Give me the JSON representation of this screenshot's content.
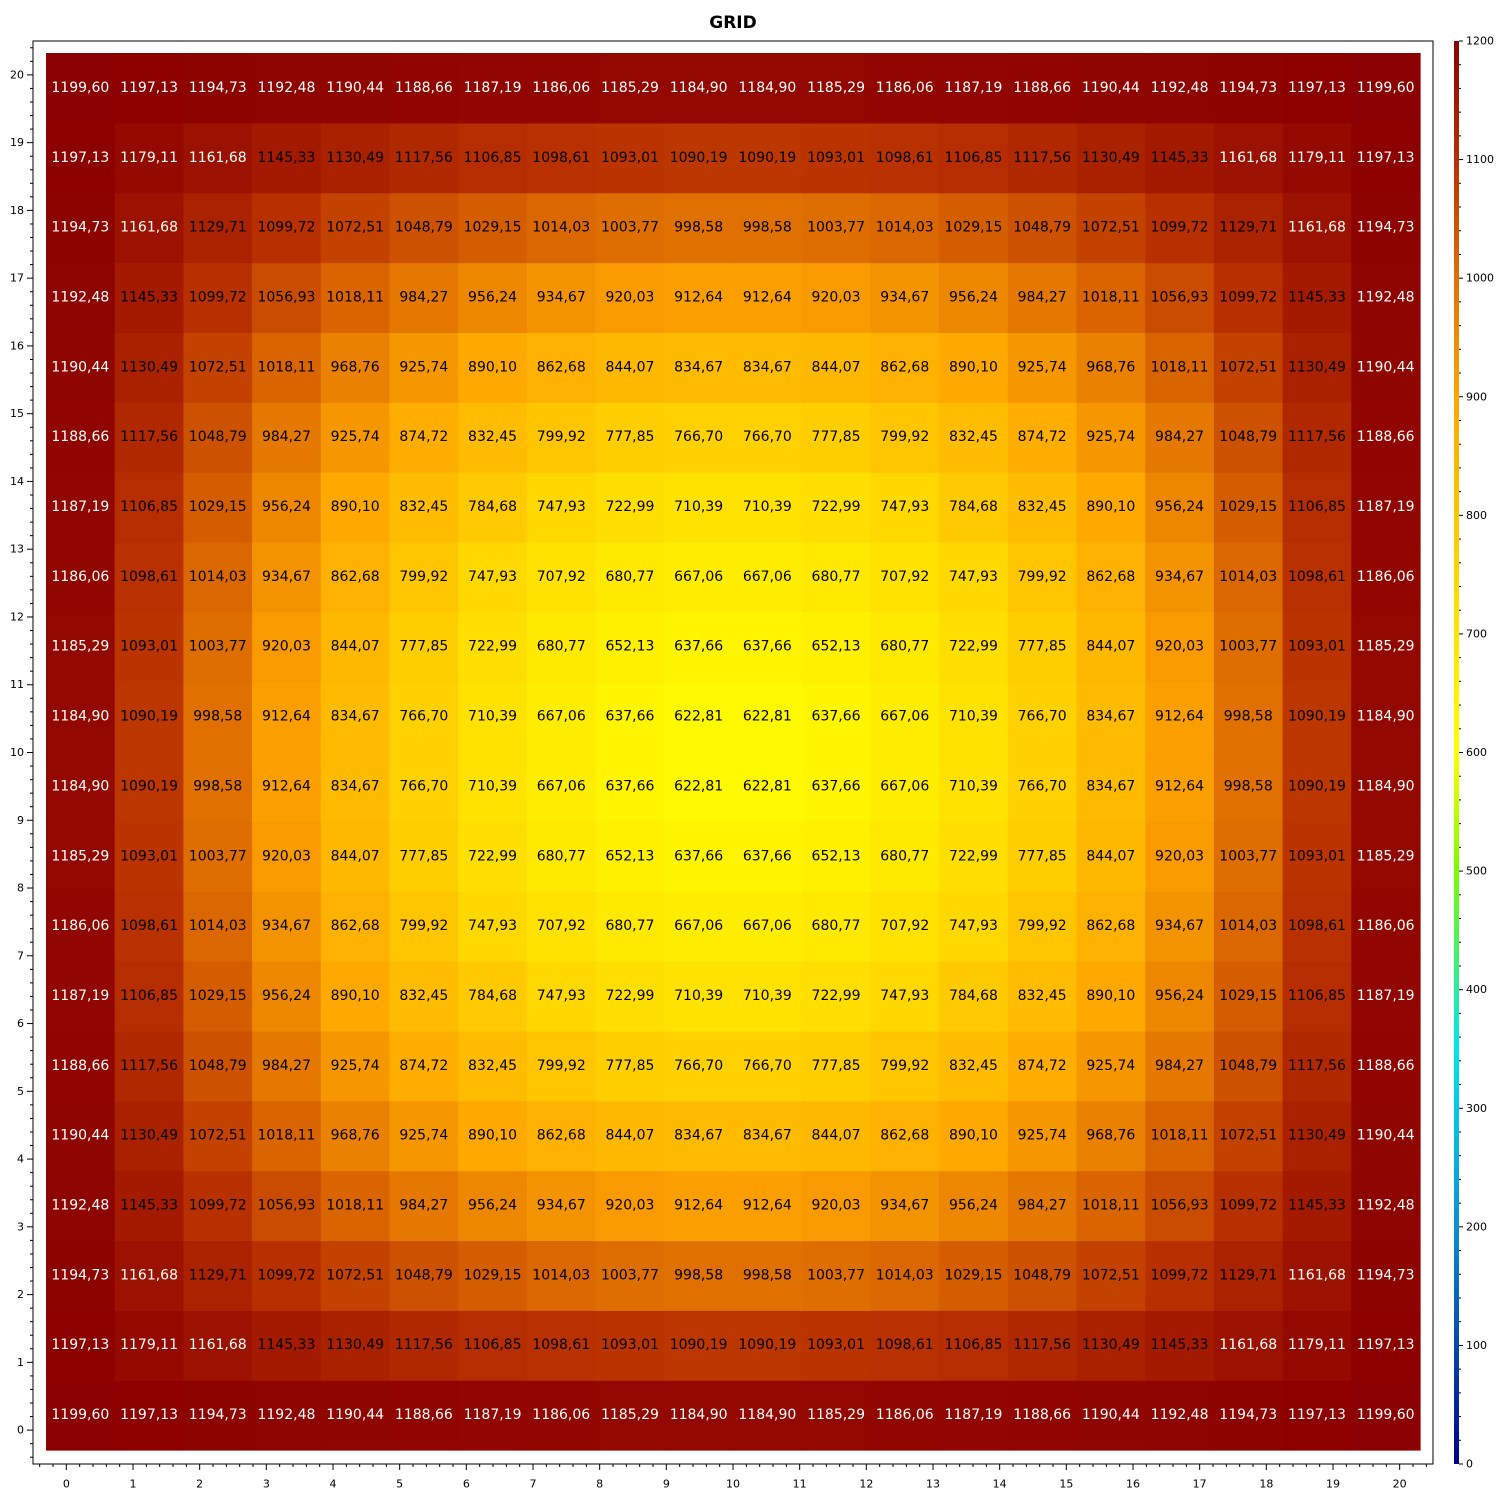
{
  "chart_data": {
    "type": "heatmap",
    "title": "GRID",
    "xlabel": "",
    "ylabel": "",
    "x": [
      0,
      1,
      2,
      3,
      4,
      5,
      6,
      7,
      8,
      9,
      10,
      11,
      12,
      13,
      14,
      15,
      16,
      17,
      18,
      19,
      20
    ],
    "y": [
      0,
      1,
      2,
      3,
      4,
      5,
      6,
      7,
      8,
      9,
      10,
      11,
      12,
      13,
      14,
      15,
      16,
      17,
      18,
      19,
      20
    ],
    "xlim": [
      -0.5,
      20.5
    ],
    "ylim": [
      -0.5,
      20.5
    ],
    "x_ticks": [
      0,
      1,
      2,
      3,
      4,
      5,
      6,
      7,
      8,
      9,
      10,
      11,
      12,
      13,
      14,
      15,
      16,
      17,
      18,
      19,
      20
    ],
    "y_ticks": [
      0,
      1,
      2,
      3,
      4,
      5,
      6,
      7,
      8,
      9,
      10,
      11,
      12,
      13,
      14,
      15,
      16,
      17,
      18,
      19,
      20
    ],
    "decimal_separator": ",",
    "rows_bottom_to_top": [
      [
        "1199,60",
        "1197,13",
        "1194,73",
        "1192,48",
        "1190,44",
        "1188,66",
        "1187,19",
        "1186,06",
        "1185,29",
        "1184,90",
        "1184,90",
        "1185,29",
        "1186,06",
        "1187,19",
        "1188,66",
        "1190,44",
        "1192,48",
        "1194,73",
        "1197,13",
        "1199,60"
      ],
      [
        "1197,13",
        "1179,11",
        "1161,68",
        "1145,33",
        "1130,49",
        "1117,56",
        "1106,85",
        "1098,61",
        "1093,01",
        "1090,19",
        "1090,19",
        "1093,01",
        "1098,61",
        "1106,85",
        "1117,56",
        "1130,49",
        "1145,33",
        "1161,68",
        "1179,11",
        "1197,13"
      ],
      [
        "1194,73",
        "1161,68",
        "1129,71",
        "1099,72",
        "1072,51",
        "1048,79",
        "1029,15",
        "1014,03",
        "1003,77",
        "998,58",
        "998,58",
        "1003,77",
        "1014,03",
        "1029,15",
        "1048,79",
        "1072,51",
        "1099,72",
        "1129,71",
        "1161,68",
        "1194,73"
      ],
      [
        "1192,48",
        "1145,33",
        "1099,72",
        "1056,93",
        "1018,11",
        "984,27",
        "956,24",
        "934,67",
        "920,03",
        "912,64",
        "912,64",
        "920,03",
        "934,67",
        "956,24",
        "984,27",
        "1018,11",
        "1056,93",
        "1099,72",
        "1145,33",
        "1192,48"
      ],
      [
        "1190,44",
        "1130,49",
        "1072,51",
        "1018,11",
        "968,76",
        "925,74",
        "890,10",
        "862,68",
        "844,07",
        "834,67",
        "834,67",
        "844,07",
        "862,68",
        "890,10",
        "925,74",
        "968,76",
        "1018,11",
        "1072,51",
        "1130,49",
        "1190,44"
      ],
      [
        "1188,66",
        "1117,56",
        "1048,79",
        "984,27",
        "925,74",
        "874,72",
        "832,45",
        "799,92",
        "777,85",
        "766,70",
        "766,70",
        "777,85",
        "799,92",
        "832,45",
        "874,72",
        "925,74",
        "984,27",
        "1048,79",
        "1117,56",
        "1188,66"
      ],
      [
        "1187,19",
        "1106,85",
        "1029,15",
        "956,24",
        "890,10",
        "832,45",
        "784,68",
        "747,93",
        "722,99",
        "710,39",
        "710,39",
        "722,99",
        "747,93",
        "784,68",
        "832,45",
        "890,10",
        "956,24",
        "1029,15",
        "1106,85",
        "1187,19"
      ],
      [
        "1186,06",
        "1098,61",
        "1014,03",
        "934,67",
        "862,68",
        "799,92",
        "747,93",
        "707,92",
        "680,77",
        "667,06",
        "667,06",
        "680,77",
        "707,92",
        "747,93",
        "799,92",
        "862,68",
        "934,67",
        "1014,03",
        "1098,61",
        "1186,06"
      ],
      [
        "1185,29",
        "1093,01",
        "1003,77",
        "920,03",
        "844,07",
        "777,85",
        "722,99",
        "680,77",
        "652,13",
        "637,66",
        "637,66",
        "652,13",
        "680,77",
        "722,99",
        "777,85",
        "844,07",
        "920,03",
        "1003,77",
        "1093,01",
        "1185,29"
      ],
      [
        "1184,90",
        "1090,19",
        "998,58",
        "912,64",
        "834,67",
        "766,70",
        "710,39",
        "667,06",
        "637,66",
        "622,81",
        "622,81",
        "637,66",
        "667,06",
        "710,39",
        "766,70",
        "834,67",
        "912,64",
        "998,58",
        "1090,19",
        "1184,90"
      ],
      [
        "1184,90",
        "1090,19",
        "998,58",
        "912,64",
        "834,67",
        "766,70",
        "710,39",
        "667,06",
        "637,66",
        "622,81",
        "622,81",
        "637,66",
        "667,06",
        "710,39",
        "766,70",
        "834,67",
        "912,64",
        "998,58",
        "1090,19",
        "1184,90"
      ],
      [
        "1185,29",
        "1093,01",
        "1003,77",
        "920,03",
        "844,07",
        "777,85",
        "722,99",
        "680,77",
        "652,13",
        "637,66",
        "637,66",
        "652,13",
        "680,77",
        "722,99",
        "777,85",
        "844,07",
        "920,03",
        "1003,77",
        "1093,01",
        "1185,29"
      ],
      [
        "1186,06",
        "1098,61",
        "1014,03",
        "934,67",
        "862,68",
        "799,92",
        "747,93",
        "707,92",
        "680,77",
        "667,06",
        "667,06",
        "680,77",
        "707,92",
        "747,93",
        "799,92",
        "862,68",
        "934,67",
        "1014,03",
        "1098,61",
        "1186,06"
      ],
      [
        "1187,19",
        "1106,85",
        "1029,15",
        "956,24",
        "890,10",
        "832,45",
        "784,68",
        "747,93",
        "722,99",
        "710,39",
        "710,39",
        "722,99",
        "747,93",
        "784,68",
        "832,45",
        "890,10",
        "956,24",
        "1029,15",
        "1106,85",
        "1187,19"
      ],
      [
        "1188,66",
        "1117,56",
        "1048,79",
        "984,27",
        "925,74",
        "874,72",
        "832,45",
        "799,92",
        "777,85",
        "766,70",
        "766,70",
        "777,85",
        "799,92",
        "832,45",
        "874,72",
        "925,74",
        "984,27",
        "1048,79",
        "1117,56",
        "1188,66"
      ],
      [
        "1190,44",
        "1130,49",
        "1072,51",
        "1018,11",
        "968,76",
        "925,74",
        "890,10",
        "862,68",
        "844,07",
        "834,67",
        "834,67",
        "844,07",
        "862,68",
        "890,10",
        "925,74",
        "968,76",
        "1018,11",
        "1072,51",
        "1130,49",
        "1190,44"
      ],
      [
        "1192,48",
        "1145,33",
        "1099,72",
        "1056,93",
        "1018,11",
        "984,27",
        "956,24",
        "934,67",
        "920,03",
        "912,64",
        "912,64",
        "920,03",
        "934,67",
        "956,24",
        "984,27",
        "1018,11",
        "1056,93",
        "1099,72",
        "1145,33",
        "1192,48"
      ],
      [
        "1194,73",
        "1161,68",
        "1129,71",
        "1099,72",
        "1072,51",
        "1048,79",
        "1029,15",
        "1014,03",
        "1003,77",
        "998,58",
        "998,58",
        "1003,77",
        "1014,03",
        "1029,15",
        "1048,79",
        "1072,51",
        "1099,72",
        "1129,71",
        "1161,68",
        "1194,73"
      ],
      [
        "1197,13",
        "1179,11",
        "1161,68",
        "1145,33",
        "1130,49",
        "1117,56",
        "1106,85",
        "1098,61",
        "1093,01",
        "1090,19",
        "1090,19",
        "1093,01",
        "1098,61",
        "1106,85",
        "1117,56",
        "1130,49",
        "1145,33",
        "1161,68",
        "1179,11",
        "1197,13"
      ],
      [
        "1199,60",
        "1197,13",
        "1194,73",
        "1192,48",
        "1190,44",
        "1188,66",
        "1187,19",
        "1186,06",
        "1185,29",
        "1184,90",
        "1184,90",
        "1185,29",
        "1186,06",
        "1187,19",
        "1188,66",
        "1190,44",
        "1192,48",
        "1194,73",
        "1197,13",
        "1199,60"
      ]
    ],
    "colorbar": {
      "range": [
        0,
        1200
      ],
      "ticks": [
        0,
        100,
        200,
        300,
        400,
        500,
        600,
        700,
        800,
        900,
        1000,
        1100,
        1200
      ],
      "colormap_stops": [
        {
          "value": 0,
          "color": "#00008b"
        },
        {
          "value": 200,
          "color": "#0a8fd6"
        },
        {
          "value": 350,
          "color": "#00e5ee"
        },
        {
          "value": 500,
          "color": "#7cfc00"
        },
        {
          "value": 600,
          "color": "#ffff00"
        },
        {
          "value": 750,
          "color": "#ffd700"
        },
        {
          "value": 900,
          "color": "#ffa500"
        },
        {
          "value": 1000,
          "color": "#e07000"
        },
        {
          "value": 1100,
          "color": "#b83000"
        },
        {
          "value": 1200,
          "color": "#8b0000"
        }
      ]
    },
    "grid": false,
    "label_colors": {
      "on_dark": "#ffffff",
      "on_light": "#000000"
    }
  }
}
